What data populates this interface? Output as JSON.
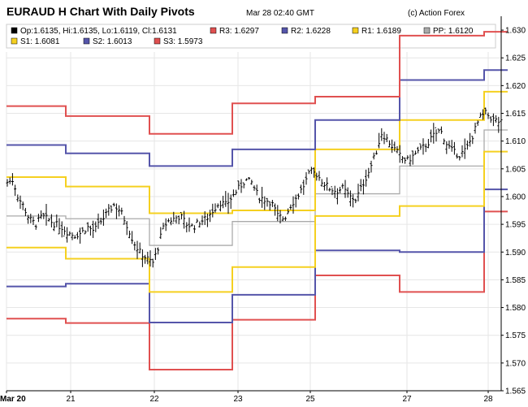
{
  "header": {
    "title": "EURAUD H Chart With Daily Pivots",
    "timestamp": "Mar 28 02:40 GMT",
    "credit": "(c) Action Forex"
  },
  "legend": [
    {
      "key": "ohlc",
      "label": "Op:1.6135, Hi:1.6135, Lo:1.6119, Cl:1.6131",
      "color": "#000000"
    },
    {
      "key": "r3",
      "label": "R3: 1.6297",
      "color": "#e05050"
    },
    {
      "key": "r2",
      "label": "R2: 1.6228",
      "color": "#5555aa"
    },
    {
      "key": "r1",
      "label": "R1: 1.6189",
      "color": "#f5d020"
    },
    {
      "key": "pp",
      "label": "PP: 1.6120",
      "color": "#aaaaaa"
    },
    {
      "key": "s1",
      "label": "S1: 1.6081",
      "color": "#f5d020"
    },
    {
      "key": "s2",
      "label": "S2: 1.6013",
      "color": "#5555aa"
    },
    {
      "key": "s3",
      "label": "S3: 1.5973",
      "color": "#e05050"
    }
  ],
  "chart_data": {
    "type": "line",
    "ylim": [
      1.565,
      1.6325
    ],
    "y_ticks": [
      "1.565",
      "1.570",
      "1.575",
      "1.580",
      "1.585",
      "1.590",
      "1.595",
      "1.600",
      "1.605",
      "1.610",
      "1.615",
      "1.620",
      "1.625",
      "1.630"
    ],
    "x_ticks": [
      "Mar 20",
      "21",
      "22",
      "23",
      "25",
      "27",
      "28"
    ],
    "x_tick_positions": [
      0,
      79,
      182,
      285,
      374,
      493,
      593
    ],
    "days": [
      {
        "start": 0,
        "end": 73,
        "r3": 1.6163,
        "r2": 1.6093,
        "r1": 1.6035,
        "pp": 1.5965,
        "s1": 1.5908,
        "s2": 1.5838,
        "s3": 1.578
      },
      {
        "start": 73,
        "end": 176,
        "r3": 1.6145,
        "r2": 1.6078,
        "r1": 1.6018,
        "pp": 1.596,
        "s1": 1.5888,
        "s2": 1.5843,
        "s3": 1.5772
      },
      {
        "start": 176,
        "end": 278,
        "r3": 1.6113,
        "r2": 1.6055,
        "r1": 1.597,
        "pp": 1.5912,
        "s1": 1.5828,
        "s2": 1.5773,
        "s3": 1.5688
      },
      {
        "start": 278,
        "end": 380,
        "r3": 1.6168,
        "r2": 1.6085,
        "r1": 1.5975,
        "pp": 1.5955,
        "s1": 1.5873,
        "s2": 1.5823,
        "s3": 1.5778
      },
      {
        "start": 380,
        "end": 484,
        "r3": 1.618,
        "r2": 1.6138,
        "r1": 1.6085,
        "pp": 1.6005,
        "s1": 1.5965,
        "s2": 1.5903,
        "s3": 1.5858
      },
      {
        "start": 484,
        "end": 588,
        "r3": 1.629,
        "r2": 1.621,
        "r1": 1.6138,
        "pp": 1.6055,
        "s1": 1.5983,
        "s2": 1.59,
        "s3": 1.5828
      },
      {
        "start": 588,
        "end": 617,
        "r3": 1.6297,
        "r2": 1.6228,
        "r1": 1.6189,
        "pp": 1.612,
        "s1": 1.6081,
        "s2": 1.6013,
        "s3": 1.5973
      }
    ],
    "price_path": [
      [
        0,
        1.6025
      ],
      [
        8,
        1.603
      ],
      [
        14,
        1.6
      ],
      [
        20,
        1.5985
      ],
      [
        28,
        1.596
      ],
      [
        36,
        1.595
      ],
      [
        44,
        1.5965
      ],
      [
        52,
        1.5958
      ],
      [
        60,
        1.595
      ],
      [
        68,
        1.5945
      ],
      [
        76,
        1.5935
      ],
      [
        84,
        1.593
      ],
      [
        92,
        1.5935
      ],
      [
        100,
        1.5945
      ],
      [
        108,
        1.5938
      ],
      [
        116,
        1.5955
      ],
      [
        124,
        1.597
      ],
      [
        132,
        1.5985
      ],
      [
        140,
        1.5975
      ],
      [
        148,
        1.595
      ],
      [
        156,
        1.592
      ],
      [
        164,
        1.59
      ],
      [
        172,
        1.589
      ],
      [
        180,
        1.588
      ],
      [
        186,
        1.5905
      ],
      [
        192,
        1.594
      ],
      [
        198,
        1.5955
      ],
      [
        206,
        1.596
      ],
      [
        214,
        1.5965
      ],
      [
        222,
        1.595
      ],
      [
        230,
        1.5945
      ],
      [
        238,
        1.5955
      ],
      [
        246,
        1.596
      ],
      [
        254,
        1.5975
      ],
      [
        262,
        1.599
      ],
      [
        270,
        1.5985
      ],
      [
        278,
        1.6
      ],
      [
        286,
        1.6015
      ],
      [
        294,
        1.603
      ],
      [
        302,
        1.6025
      ],
      [
        310,
        1.6
      ],
      [
        318,
        1.5995
      ],
      [
        326,
        1.599
      ],
      [
        334,
        1.5965
      ],
      [
        342,
        1.596
      ],
      [
        350,
        1.5985
      ],
      [
        358,
        1.6
      ],
      [
        366,
        1.602
      ],
      [
        374,
        1.6045
      ],
      [
        382,
        1.604
      ],
      [
        390,
        1.6025
      ],
      [
        398,
        1.6015
      ],
      [
        406,
        1.601
      ],
      [
        414,
        1.6015
      ],
      [
        422,
        1.6
      ],
      [
        430,
        1.5995
      ],
      [
        438,
        1.602
      ],
      [
        446,
        1.6045
      ],
      [
        454,
        1.6075
      ],
      [
        462,
        1.6115
      ],
      [
        470,
        1.61
      ],
      [
        478,
        1.6085
      ],
      [
        486,
        1.607
      ],
      [
        494,
        1.6065
      ],
      [
        502,
        1.6075
      ],
      [
        510,
        1.6085
      ],
      [
        518,
        1.6095
      ],
      [
        526,
        1.611
      ],
      [
        534,
        1.612
      ],
      [
        542,
        1.6095
      ],
      [
        550,
        1.608
      ],
      [
        558,
        1.6075
      ],
      [
        566,
        1.6085
      ],
      [
        574,
        1.611
      ],
      [
        582,
        1.614
      ],
      [
        590,
        1.615
      ],
      [
        598,
        1.614
      ],
      [
        606,
        1.6135
      ],
      [
        614,
        1.613
      ]
    ]
  }
}
